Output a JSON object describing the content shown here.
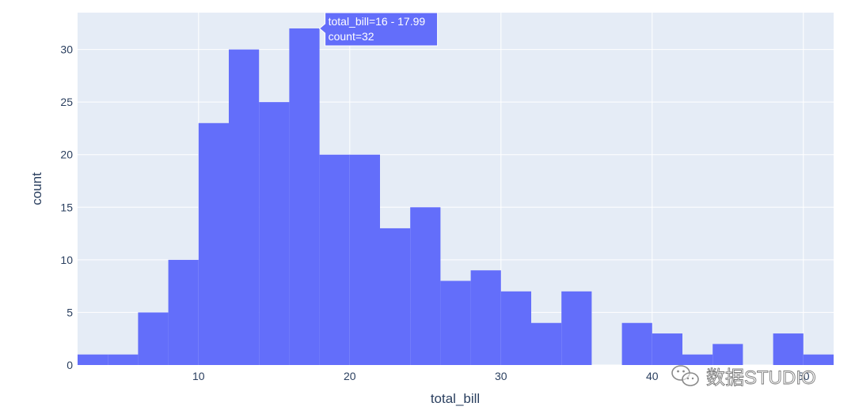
{
  "chart_data": {
    "type": "bar",
    "subtype": "histogram",
    "xlabel": "total_bill",
    "ylabel": "count",
    "xlim": [
      2,
      52
    ],
    "ylim": [
      0,
      33.5
    ],
    "x_ticks": [
      10,
      20,
      30,
      40,
      50
    ],
    "y_ticks": [
      0,
      5,
      10,
      15,
      20,
      25,
      30
    ],
    "grid": true,
    "bar_color": "#636efa",
    "plot_bg": "#e5ecf6",
    "bins": [
      {
        "x0": 2,
        "x1": 4,
        "count": 1
      },
      {
        "x0": 4,
        "x1": 6,
        "count": 1
      },
      {
        "x0": 6,
        "x1": 8,
        "count": 5
      },
      {
        "x0": 8,
        "x1": 10,
        "count": 10
      },
      {
        "x0": 10,
        "x1": 12,
        "count": 23
      },
      {
        "x0": 12,
        "x1": 14,
        "count": 30
      },
      {
        "x0": 14,
        "x1": 16,
        "count": 25
      },
      {
        "x0": 16,
        "x1": 18,
        "count": 32
      },
      {
        "x0": 18,
        "x1": 20,
        "count": 20
      },
      {
        "x0": 20,
        "x1": 22,
        "count": 20
      },
      {
        "x0": 22,
        "x1": 24,
        "count": 13
      },
      {
        "x0": 24,
        "x1": 26,
        "count": 15
      },
      {
        "x0": 26,
        "x1": 28,
        "count": 8
      },
      {
        "x0": 28,
        "x1": 30,
        "count": 9
      },
      {
        "x0": 30,
        "x1": 32,
        "count": 7
      },
      {
        "x0": 32,
        "x1": 34,
        "count": 4
      },
      {
        "x0": 34,
        "x1": 36,
        "count": 7
      },
      {
        "x0": 36,
        "x1": 38,
        "count": 0
      },
      {
        "x0": 38,
        "x1": 40,
        "count": 4
      },
      {
        "x0": 40,
        "x1": 42,
        "count": 3
      },
      {
        "x0": 42,
        "x1": 44,
        "count": 1
      },
      {
        "x0": 44,
        "x1": 46,
        "count": 2
      },
      {
        "x0": 46,
        "x1": 48,
        "count": 0
      },
      {
        "x0": 48,
        "x1": 50,
        "count": 3
      },
      {
        "x0": 50,
        "x1": 52,
        "count": 1
      }
    ],
    "hover": {
      "bin_index": 7,
      "line1": "total_bill=16 - 17.99",
      "line2": "count=32"
    }
  },
  "watermark": {
    "text": "数据STUDIO"
  }
}
